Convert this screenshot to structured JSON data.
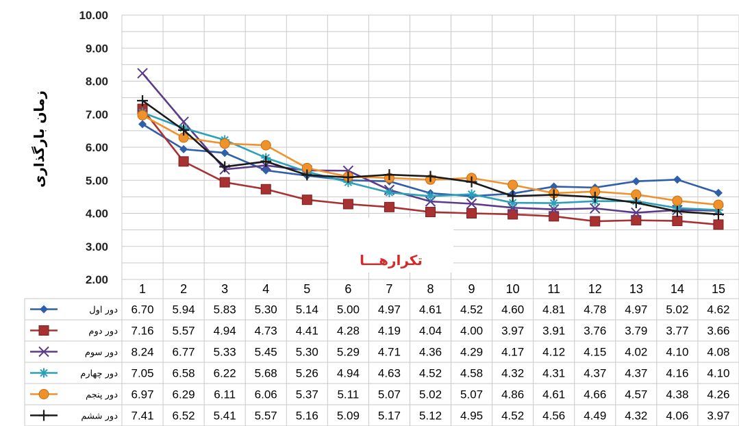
{
  "chart_data": {
    "type": "line",
    "title": "",
    "xlabel": "تکرارهـــا",
    "ylabel": "زمان بارگذاری",
    "ylim": [
      2,
      10
    ],
    "yticks": [
      "2.00",
      "3.00",
      "4.00",
      "5.00",
      "6.00",
      "7.00",
      "8.00",
      "9.00",
      "10.00"
    ],
    "categories": [
      "1",
      "2",
      "3",
      "4",
      "5",
      "6",
      "7",
      "8",
      "9",
      "10",
      "11",
      "12",
      "13",
      "14",
      "15"
    ],
    "grid": true,
    "legend": "data-table-left",
    "series": [
      {
        "name": "دور اول",
        "color": "#2e5fa8",
        "marker": "diamond",
        "values": [
          6.7,
          5.94,
          5.83,
          5.3,
          5.14,
          5.0,
          4.97,
          4.61,
          4.52,
          4.6,
          4.81,
          4.78,
          4.97,
          5.02,
          4.62
        ]
      },
      {
        "name": "دور دوم",
        "color": "#a83232",
        "marker": "square",
        "values": [
          7.16,
          5.57,
          4.94,
          4.73,
          4.41,
          4.28,
          4.19,
          4.04,
          4.0,
          3.97,
          3.91,
          3.76,
          3.79,
          3.77,
          3.66
        ]
      },
      {
        "name": "دور سوم",
        "color": "#5a3a8a",
        "marker": "x",
        "values": [
          8.24,
          6.77,
          5.33,
          5.45,
          5.3,
          5.29,
          4.71,
          4.36,
          4.29,
          4.17,
          4.12,
          4.15,
          4.02,
          4.1,
          4.08
        ]
      },
      {
        "name": "دور چهارم",
        "color": "#2aa1b8",
        "marker": "star",
        "values": [
          7.05,
          6.58,
          6.22,
          5.68,
          5.26,
          4.94,
          4.63,
          4.52,
          4.58,
          4.32,
          4.31,
          4.37,
          4.37,
          4.16,
          4.1
        ]
      },
      {
        "name": "دور پنجم",
        "color": "#f0922b",
        "marker": "circle",
        "values": [
          6.97,
          6.29,
          6.11,
          6.06,
          5.37,
          5.11,
          5.07,
          5.02,
          5.07,
          4.86,
          4.61,
          4.66,
          4.57,
          4.38,
          4.26
        ]
      },
      {
        "name": "دور ششم",
        "color": "#1a1a1a",
        "marker": "plus",
        "values": [
          7.41,
          6.52,
          5.41,
          5.57,
          5.16,
          5.09,
          5.17,
          5.12,
          4.95,
          4.52,
          4.56,
          4.49,
          4.32,
          4.06,
          3.97
        ]
      }
    ]
  }
}
